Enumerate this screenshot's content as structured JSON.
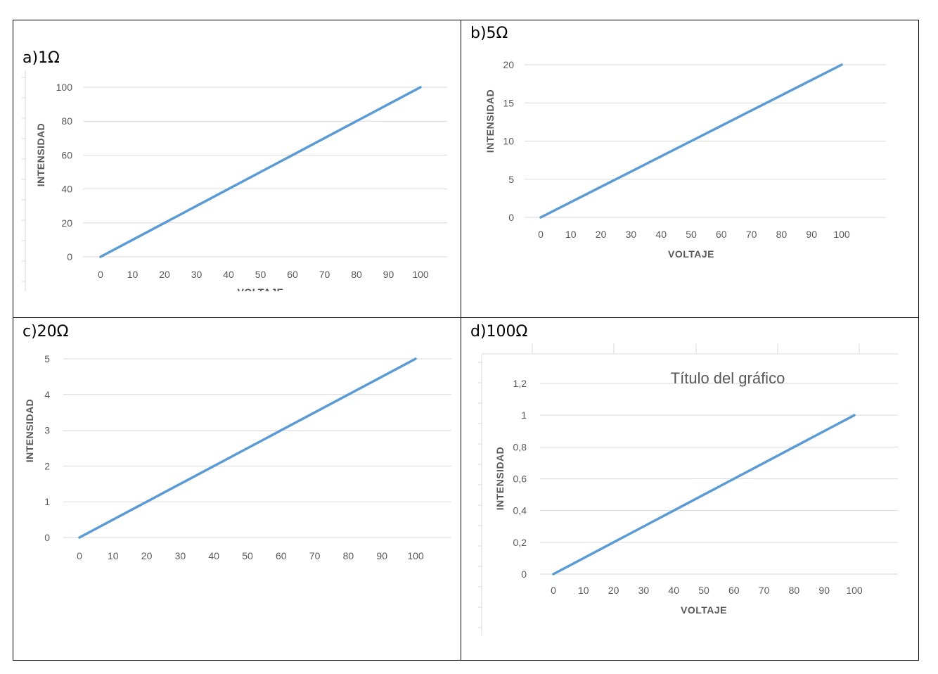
{
  "chart_data": [
    {
      "type": "line",
      "panel_label": "a)1Ω",
      "x": [
        0,
        10,
        20,
        30,
        40,
        50,
        60,
        70,
        80,
        90,
        100
      ],
      "series": [
        {
          "values": [
            0,
            10,
            20,
            30,
            40,
            50,
            60,
            70,
            80,
            90,
            100
          ],
          "color": "#5b9bd5"
        }
      ],
      "ylim": [
        0,
        100
      ],
      "yticks": [
        0,
        20,
        40,
        60,
        80,
        100
      ],
      "ytick_labels": [
        "0",
        "20",
        "40",
        "60",
        "80",
        "100"
      ],
      "xlabel": "VOLTAJE",
      "ylabel": "INTENSIDAD",
      "title": "",
      "grid": true
    },
    {
      "type": "line",
      "panel_label": "b)5Ω",
      "x": [
        0,
        10,
        20,
        30,
        40,
        50,
        60,
        70,
        80,
        90,
        100
      ],
      "series": [
        {
          "values": [
            0,
            2,
            4,
            6,
            8,
            10,
            12,
            14,
            16,
            18,
            20
          ],
          "color": "#5b9bd5"
        }
      ],
      "ylim": [
        0,
        20
      ],
      "yticks": [
        0,
        5,
        10,
        15,
        20
      ],
      "ytick_labels": [
        "0",
        "5",
        "10",
        "15",
        "20"
      ],
      "xlabel": "VOLTAJE",
      "ylabel": "INTENSIDAD",
      "title": "",
      "grid": true
    },
    {
      "type": "line",
      "panel_label": "c)20Ω",
      "x": [
        0,
        10,
        20,
        30,
        40,
        50,
        60,
        70,
        80,
        90,
        100
      ],
      "series": [
        {
          "values": [
            0,
            0.5,
            1,
            1.5,
            2,
            2.5,
            3,
            3.5,
            4,
            4.5,
            5
          ],
          "color": "#5b9bd5"
        }
      ],
      "ylim": [
        0,
        5
      ],
      "yticks": [
        0,
        1,
        2,
        3,
        4,
        5
      ],
      "ytick_labels": [
        "0",
        "1",
        "2",
        "3",
        "4",
        "5"
      ],
      "xlabel": "",
      "ylabel": "INTENSIDAD",
      "title": "",
      "grid": true
    },
    {
      "type": "line",
      "panel_label": "d)100Ω",
      "x": [
        0,
        10,
        20,
        30,
        40,
        50,
        60,
        70,
        80,
        90,
        100
      ],
      "series": [
        {
          "values": [
            0,
            0.1,
            0.2,
            0.3,
            0.4,
            0.5,
            0.6,
            0.7,
            0.8,
            0.9,
            1
          ],
          "color": "#5b9bd5"
        }
      ],
      "ylim": [
        0,
        1.2
      ],
      "yticks": [
        0,
        0.2,
        0.4,
        0.6,
        0.8,
        1,
        1.2
      ],
      "ytick_labels": [
        "0",
        "0,2",
        "0,4",
        "0,6",
        "0,8",
        "1",
        "1,2"
      ],
      "xlabel": "VOLTAJE",
      "ylabel": "INTENSIDAD",
      "title": "Título del gráfico",
      "grid": true
    }
  ]
}
